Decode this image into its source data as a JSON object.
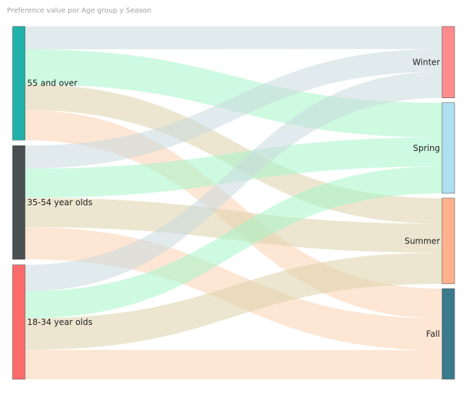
{
  "title": "Preference value por Age group y Season",
  "chart_data": {
    "type": "sankey",
    "source_dimension": "Age group",
    "target_dimension": "Season",
    "value_field": "Preference value",
    "sources": [
      {
        "name": "55 and over",
        "color": "#20B2AA"
      },
      {
        "name": "35-54 year olds",
        "color": "#4A4F51"
      },
      {
        "name": "18-34 year olds",
        "color": "#FF6B6B"
      }
    ],
    "targets": [
      {
        "name": "Winter",
        "color": "#FF8C8C"
      },
      {
        "name": "Spring",
        "color": "#AEE0F0"
      },
      {
        "name": "Summer",
        "color": "#FFB08C"
      },
      {
        "name": "Fall",
        "color": "#3A7A8C"
      }
    ],
    "flows": [
      {
        "source": "55 and over",
        "target": "Winter",
        "value": 32,
        "color": "#C9D9DD"
      },
      {
        "source": "55 and over",
        "target": "Spring",
        "value": 49,
        "color": "#A6F5C8"
      },
      {
        "source": "55 and over",
        "target": "Summer",
        "value": 36,
        "color": "#DDD2AA"
      },
      {
        "source": "55 and over",
        "target": "Fall",
        "value": 42,
        "color": "#FBD2B0"
      },
      {
        "source": "35-54 year olds",
        "target": "Winter",
        "value": 32,
        "color": "#C9D9DD"
      },
      {
        "source": "35-54 year olds",
        "target": "Spring",
        "value": 41,
        "color": "#A6F5C8"
      },
      {
        "source": "35-54 year olds",
        "target": "Summer",
        "value": 41,
        "color": "#DDD2AA"
      },
      {
        "source": "35-54 year olds",
        "target": "Fall",
        "value": 45,
        "color": "#FBD2B0"
      },
      {
        "source": "18-34 year olds",
        "target": "Winter",
        "value": 37,
        "color": "#C9D9DD"
      },
      {
        "source": "18-34 year olds",
        "target": "Spring",
        "value": 38,
        "color": "#A6F5C8"
      },
      {
        "source": "18-34 year olds",
        "target": "Summer",
        "value": 44,
        "color": "#DDD2AA"
      },
      {
        "source": "18-34 year olds",
        "target": "Fall",
        "value": 41,
        "color": "#FBD2B0"
      }
    ]
  }
}
